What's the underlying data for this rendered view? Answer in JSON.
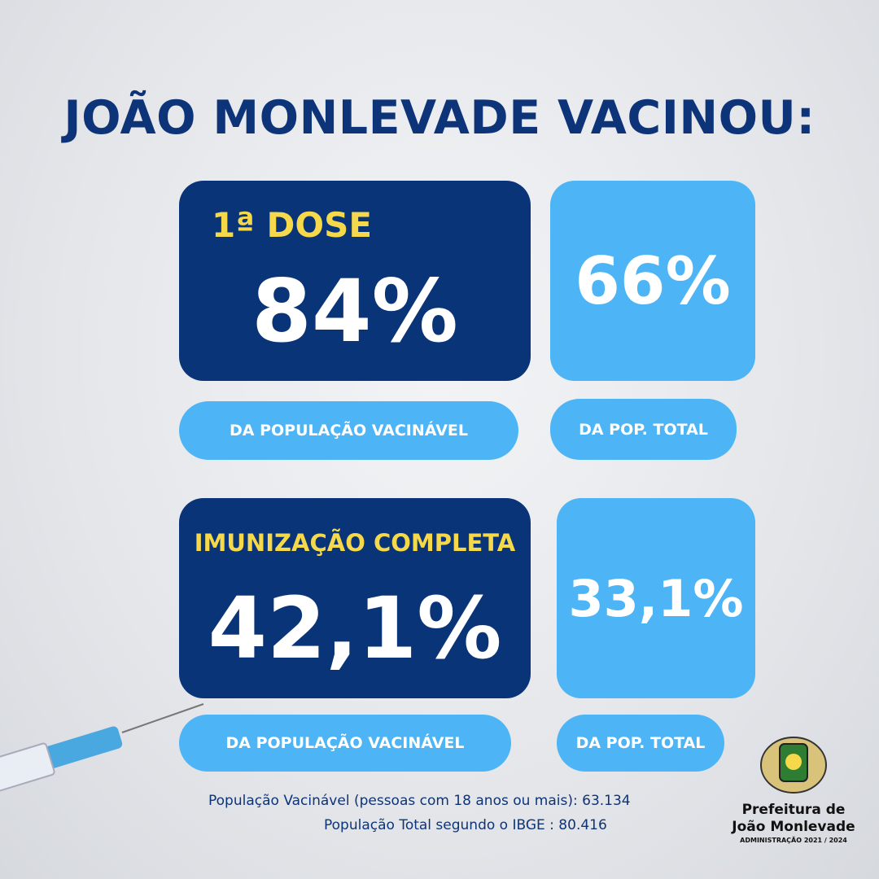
{
  "title": "JOÃO MONLEVADE VACINOU:",
  "first_dose": {
    "label": "1ª DOSE",
    "vaccinable": "84%",
    "vaccinable_caption": "DA POPULAÇÃO VACINÁVEL",
    "total": "66%",
    "total_caption": "DA POP. TOTAL"
  },
  "complete": {
    "label": "IMUNIZAÇÃO COMPLETA",
    "vaccinable": "42,1%",
    "vaccinable_caption": "DA POPULAÇÃO VACINÁVEL",
    "total": "33,1%",
    "total_caption": "DA POP. TOTAL"
  },
  "footnotes": [
    "População Vacinável (pessoas com 18 anos ou mais): 63.134",
    "População Total segundo o IBGE : 80.416"
  ],
  "logo": {
    "line1": "Prefeitura de",
    "line2": "João Monlevade",
    "admin": "ADMINISTRAÇÃO 2021 / 2024"
  }
}
